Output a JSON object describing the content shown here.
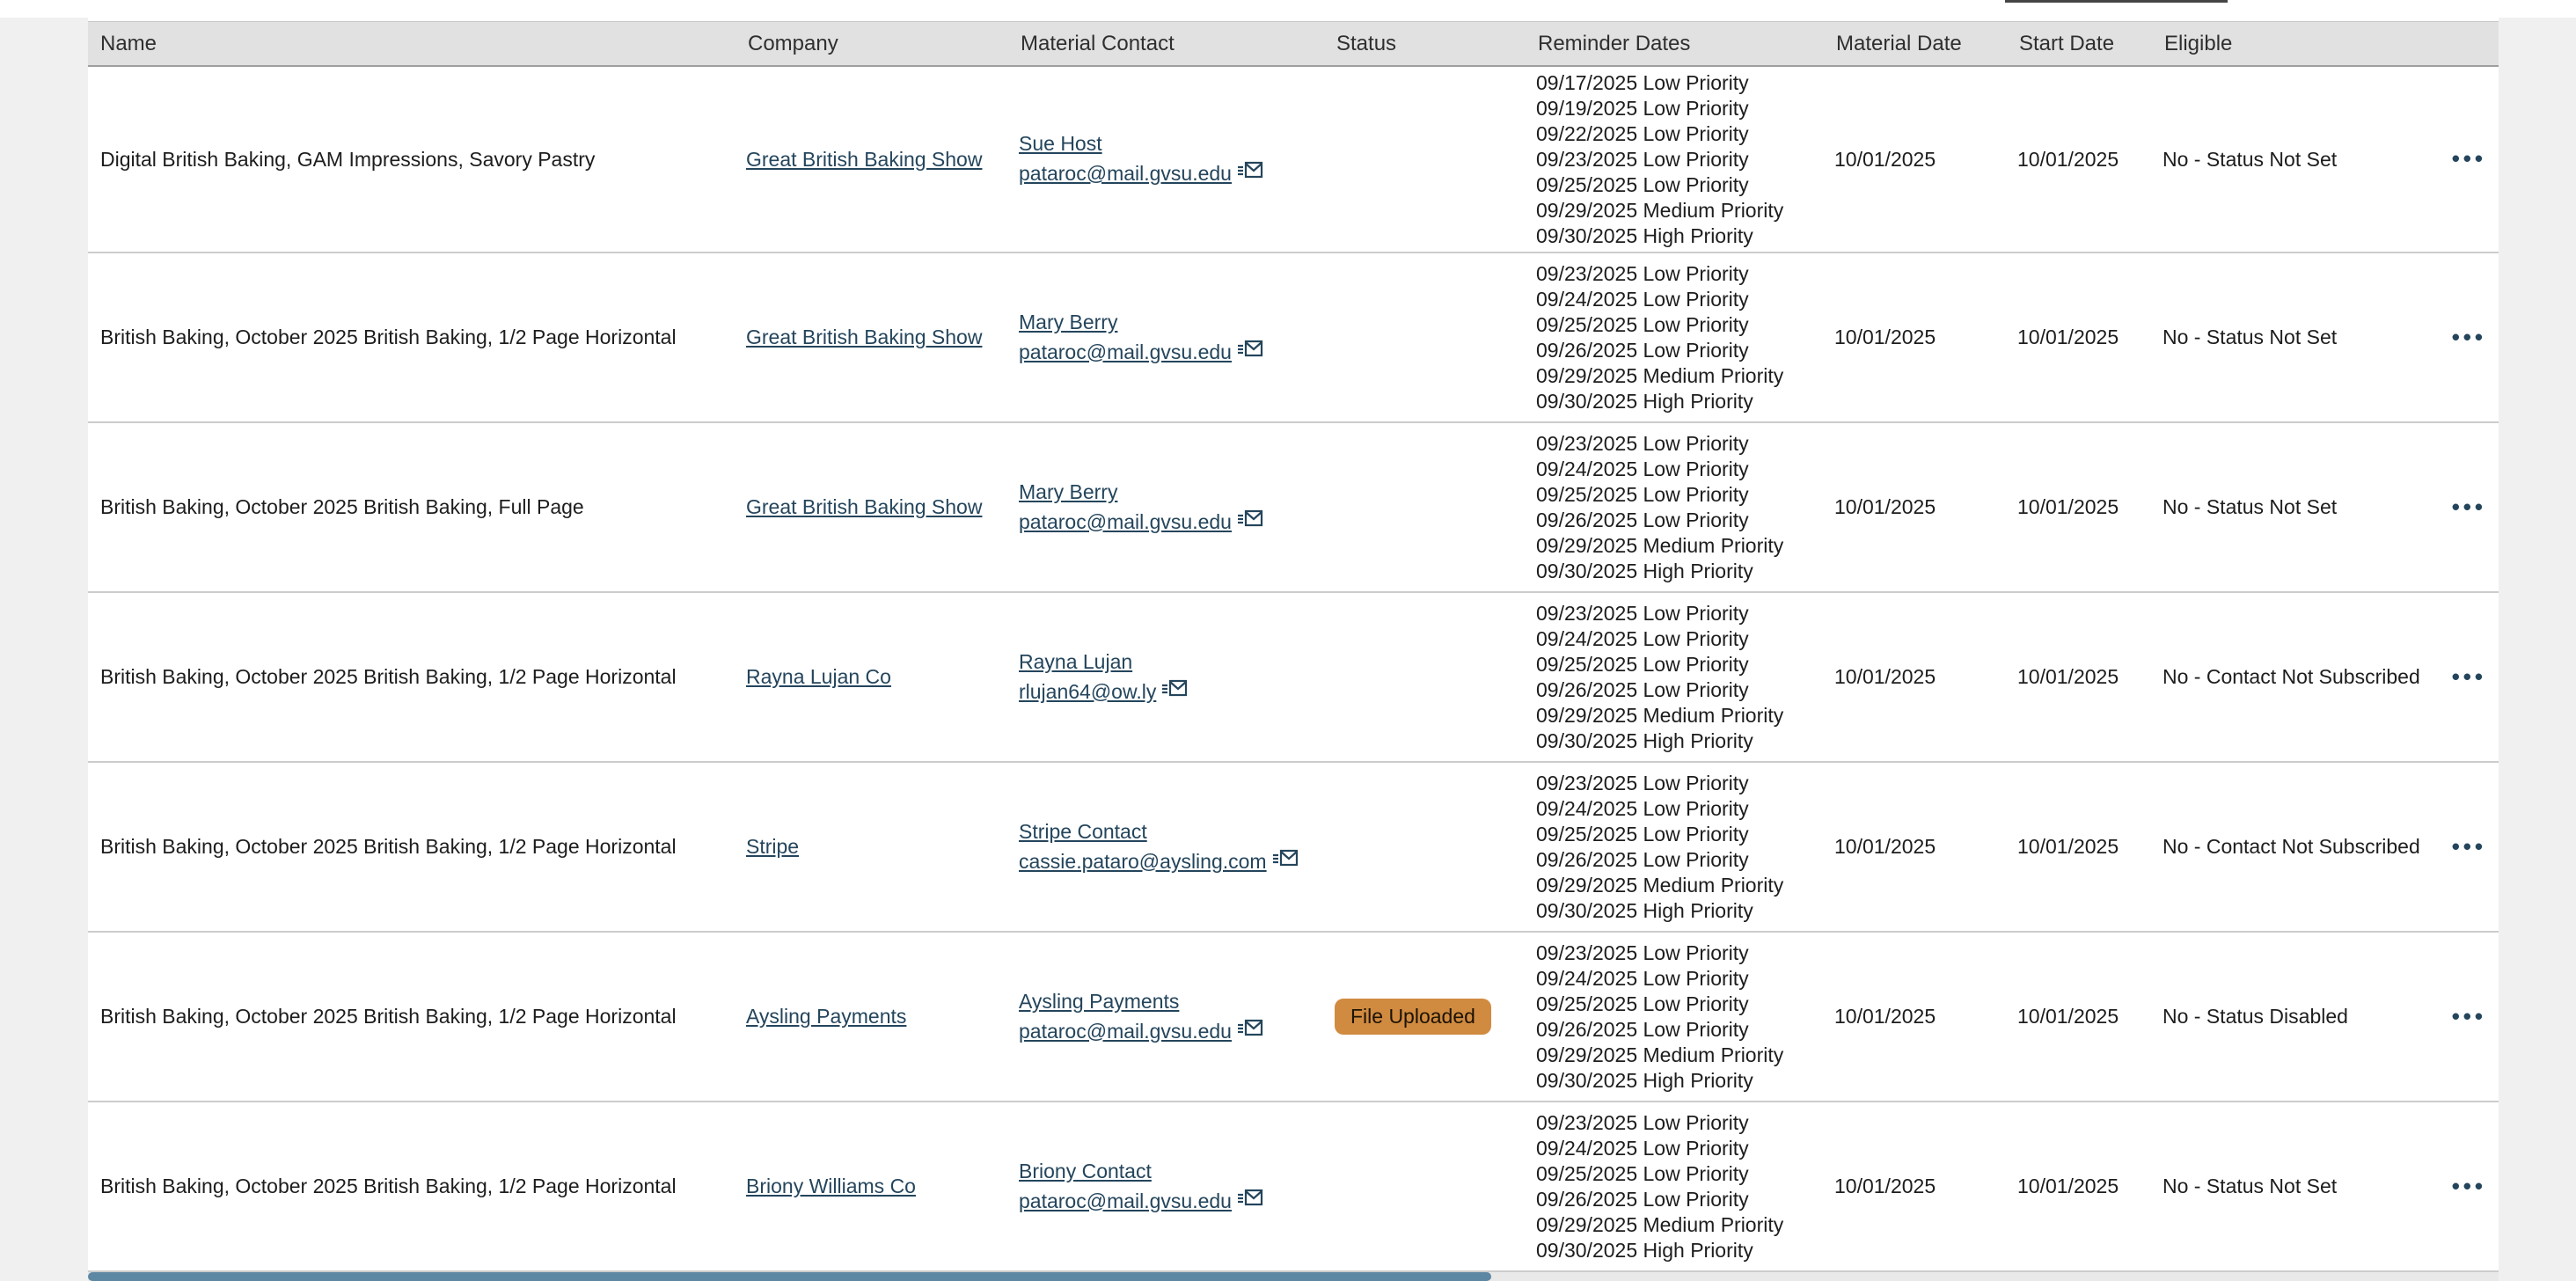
{
  "colors": {
    "link": "#24455c",
    "header_bg": "#e1e1e1",
    "badge_bg": "#d08b41",
    "scroll_thumb": "#5d87a3",
    "page_margin": "#f0f0f0"
  },
  "icons": {
    "email": "email-icon",
    "actions": "•••"
  },
  "table": {
    "columns": [
      "Name",
      "Company",
      "Material Contact",
      "Status",
      "Reminder Dates",
      "Material Date",
      "Start Date",
      "Eligible"
    ],
    "rows": [
      {
        "name": "Digital British Baking, GAM Impressions, Savory Pastry",
        "company": "Great British Baking Show",
        "contact_name": "Sue Host",
        "contact_email": "pataroc@mail.gvsu.edu",
        "status": "",
        "reminders": [
          "09/17/2025 Low Priority",
          "09/19/2025 Low Priority",
          "09/22/2025 Low Priority",
          "09/23/2025 Low Priority",
          "09/25/2025 Low Priority",
          "09/29/2025 Medium Priority",
          "09/30/2025 High Priority"
        ],
        "material_date": "10/01/2025",
        "start_date": "10/01/2025",
        "eligible": "No - Status Not Set"
      },
      {
        "name": "British Baking, October 2025 British Baking, 1/2 Page Horizontal",
        "company": "Great British Baking Show",
        "contact_name": "Mary Berry",
        "contact_email": "pataroc@mail.gvsu.edu",
        "status": "",
        "reminders": [
          "09/23/2025 Low Priority",
          "09/24/2025 Low Priority",
          "09/25/2025 Low Priority",
          "09/26/2025 Low Priority",
          "09/29/2025 Medium Priority",
          "09/30/2025 High Priority"
        ],
        "material_date": "10/01/2025",
        "start_date": "10/01/2025",
        "eligible": "No - Status Not Set"
      },
      {
        "name": "British Baking, October 2025 British Baking, Full Page",
        "company": "Great British Baking Show",
        "contact_name": "Mary Berry",
        "contact_email": "pataroc@mail.gvsu.edu",
        "status": "",
        "reminders": [
          "09/23/2025 Low Priority",
          "09/24/2025 Low Priority",
          "09/25/2025 Low Priority",
          "09/26/2025 Low Priority",
          "09/29/2025 Medium Priority",
          "09/30/2025 High Priority"
        ],
        "material_date": "10/01/2025",
        "start_date": "10/01/2025",
        "eligible": "No - Status Not Set"
      },
      {
        "name": "British Baking, October 2025 British Baking, 1/2 Page Horizontal",
        "company": "Rayna Lujan Co",
        "contact_name": "Rayna Lujan",
        "contact_email": "rlujan64@ow.ly",
        "status": "",
        "reminders": [
          "09/23/2025 Low Priority",
          "09/24/2025 Low Priority",
          "09/25/2025 Low Priority",
          "09/26/2025 Low Priority",
          "09/29/2025 Medium Priority",
          "09/30/2025 High Priority"
        ],
        "material_date": "10/01/2025",
        "start_date": "10/01/2025",
        "eligible": "No - Contact Not Subscribed"
      },
      {
        "name": "British Baking, October 2025 British Baking, 1/2 Page Horizontal",
        "company": "Stripe",
        "contact_name": "Stripe Contact",
        "contact_email": "cassie.pataro@aysling.com",
        "status": "",
        "reminders": [
          "09/23/2025 Low Priority",
          "09/24/2025 Low Priority",
          "09/25/2025 Low Priority",
          "09/26/2025 Low Priority",
          "09/29/2025 Medium Priority",
          "09/30/2025 High Priority"
        ],
        "material_date": "10/01/2025",
        "start_date": "10/01/2025",
        "eligible": "No - Contact Not Subscribed"
      },
      {
        "name": "British Baking, October 2025 British Baking, 1/2 Page Horizontal",
        "company": "Aysling Payments",
        "contact_name": "Aysling Payments",
        "contact_email": "pataroc@mail.gvsu.edu",
        "status": "File Uploaded",
        "reminders": [
          "09/23/2025 Low Priority",
          "09/24/2025 Low Priority",
          "09/25/2025 Low Priority",
          "09/26/2025 Low Priority",
          "09/29/2025 Medium Priority",
          "09/30/2025 High Priority"
        ],
        "material_date": "10/01/2025",
        "start_date": "10/01/2025",
        "eligible": "No - Status Disabled"
      },
      {
        "name": "British Baking, October 2025 British Baking, 1/2 Page Horizontal",
        "company": "Briony Williams Co",
        "contact_name": "Briony Contact",
        "contact_email": "pataroc@mail.gvsu.edu",
        "status": "",
        "reminders": [
          "09/23/2025 Low Priority",
          "09/24/2025 Low Priority",
          "09/25/2025 Low Priority",
          "09/26/2025 Low Priority",
          "09/29/2025 Medium Priority",
          "09/30/2025 High Priority"
        ],
        "material_date": "10/01/2025",
        "start_date": "10/01/2025",
        "eligible": "No - Status Not Set"
      }
    ]
  }
}
